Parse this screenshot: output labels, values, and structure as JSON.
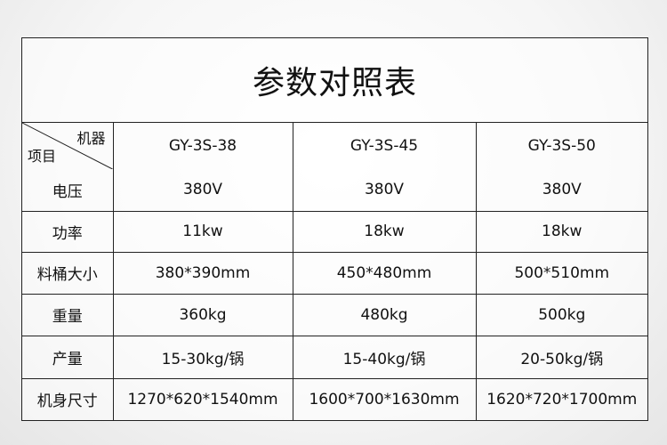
{
  "title": "参数对照表",
  "header": {
    "corner_top": "机器",
    "corner_bottom": "项目",
    "models": [
      "GY-3S-38",
      "GY-3S-45",
      "GY-3S-50"
    ]
  },
  "rows": [
    {
      "label": "电压",
      "values": [
        "380V",
        "380V",
        "380V"
      ]
    },
    {
      "label": "功率",
      "values": [
        "11kw",
        "18kw",
        "18kw"
      ]
    },
    {
      "label": "料桶大小",
      "values": [
        "380*390mm",
        "450*480mm",
        "500*510mm"
      ]
    },
    {
      "label": "重量",
      "values": [
        "360kg",
        "480kg",
        "500kg"
      ]
    },
    {
      "label": "产量",
      "values": [
        "15-30kg/锅",
        "15-40kg/锅",
        "20-50kg/锅"
      ]
    },
    {
      "label": "机身尺寸",
      "values": [
        "1270*620*1540mm",
        "1600*700*1630mm",
        "1620*720*1700mm"
      ]
    }
  ]
}
